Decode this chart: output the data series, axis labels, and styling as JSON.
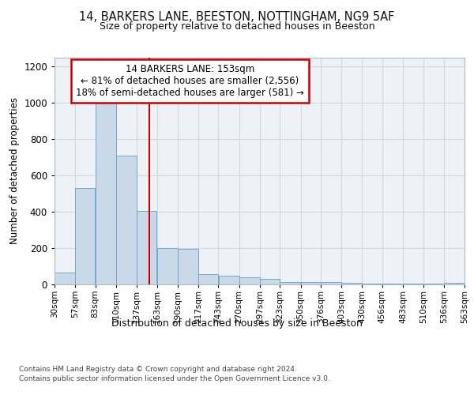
{
  "title1": "14, BARKERS LANE, BEESTON, NOTTINGHAM, NG9 5AF",
  "title2": "Size of property relative to detached houses in Beeston",
  "xlabel": "Distribution of detached houses by size in Beeston",
  "ylabel": "Number of detached properties",
  "footer1": "Contains HM Land Registry data © Crown copyright and database right 2024.",
  "footer2": "Contains public sector information licensed under the Open Government Licence v3.0.",
  "annotation_line1": "14 BARKERS LANE: 153sqm",
  "annotation_line2": "← 81% of detached houses are smaller (2,556)",
  "annotation_line3": "18% of semi-detached houses are larger (581) →",
  "property_size": 153,
  "bar_left_edges": [
    30,
    57,
    83,
    110,
    137,
    163,
    190,
    217,
    243,
    270,
    297,
    323,
    350,
    376,
    403,
    430,
    456,
    483,
    510,
    536
  ],
  "bar_widths": [
    27,
    26,
    27,
    27,
    26,
    27,
    27,
    26,
    27,
    27,
    26,
    27,
    26,
    27,
    27,
    26,
    27,
    27,
    26,
    27
  ],
  "bar_heights": [
    65,
    530,
    1000,
    710,
    405,
    200,
    195,
    55,
    50,
    40,
    30,
    15,
    15,
    15,
    10,
    5,
    5,
    5,
    5,
    10
  ],
  "tick_labels": [
    "30sqm",
    "57sqm",
    "83sqm",
    "110sqm",
    "137sqm",
    "163sqm",
    "190sqm",
    "217sqm",
    "243sqm",
    "270sqm",
    "297sqm",
    "323sqm",
    "350sqm",
    "376sqm",
    "403sqm",
    "430sqm",
    "456sqm",
    "483sqm",
    "510sqm",
    "536sqm",
    "563sqm"
  ],
  "ylim": [
    0,
    1250
  ],
  "yticks": [
    0,
    200,
    400,
    600,
    800,
    1000,
    1200
  ],
  "bar_color": "#c9d9e8",
  "bar_edge_color": "#6fa8d0",
  "vline_color": "#cc0000",
  "grid_color": "#d0d8e0",
  "bg_color": "#eef2f7",
  "annotation_box_color": "#cc0000",
  "fig_bg": "#ffffff"
}
